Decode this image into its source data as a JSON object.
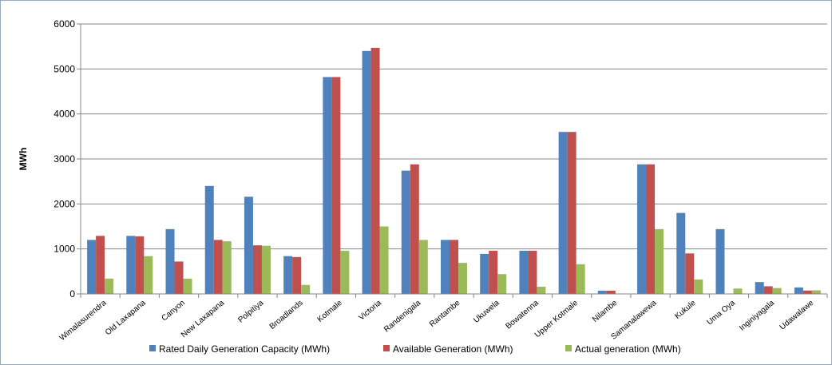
{
  "chart_data": {
    "type": "bar",
    "ylabel": "MWh",
    "ylim": [
      0,
      6000
    ],
    "yticks": [
      "0",
      "1000",
      "2000",
      "3000",
      "4000",
      "5000",
      "6000"
    ],
    "grid": true,
    "legend_position": "bottom",
    "categories": [
      "Wimalasurendra",
      "Old Laxapana",
      "Canyon",
      "New Laxapana",
      "Polpitiya",
      "Broadlands",
      "Kotmale",
      "Victoria",
      "Randenigala",
      "Rantambe",
      "Ukuwela",
      "Bowatenna",
      "Upper Kotmale",
      "Nilambe",
      "Samanalawewa",
      "Kukule",
      "Uma Oya",
      "Inginiyagala",
      "Udawalawe"
    ],
    "series": [
      {
        "name": "Rated Daily Generation Capacity (MWh)",
        "color": "#4f81bd",
        "values": [
          1200,
          1290,
          1440,
          2400,
          2160,
          840,
          4820,
          5400,
          2740,
          1200,
          890,
          960,
          3600,
          72,
          2880,
          1800,
          1440,
          264,
          144
        ]
      },
      {
        "name": "Available Generation (MWh)",
        "color": "#c0504d",
        "values": [
          1290,
          1280,
          720,
          1200,
          1080,
          820,
          4820,
          5470,
          2880,
          1200,
          960,
          960,
          3600,
          72,
          2880,
          900,
          0,
          170,
          75
        ]
      },
      {
        "name": "Actual generation (MWh)",
        "color": "#9bbb59",
        "values": [
          340,
          840,
          340,
          1170,
          1070,
          200,
          960,
          1500,
          1200,
          690,
          440,
          160,
          660,
          0,
          1440,
          320,
          120,
          130,
          80
        ]
      }
    ]
  }
}
